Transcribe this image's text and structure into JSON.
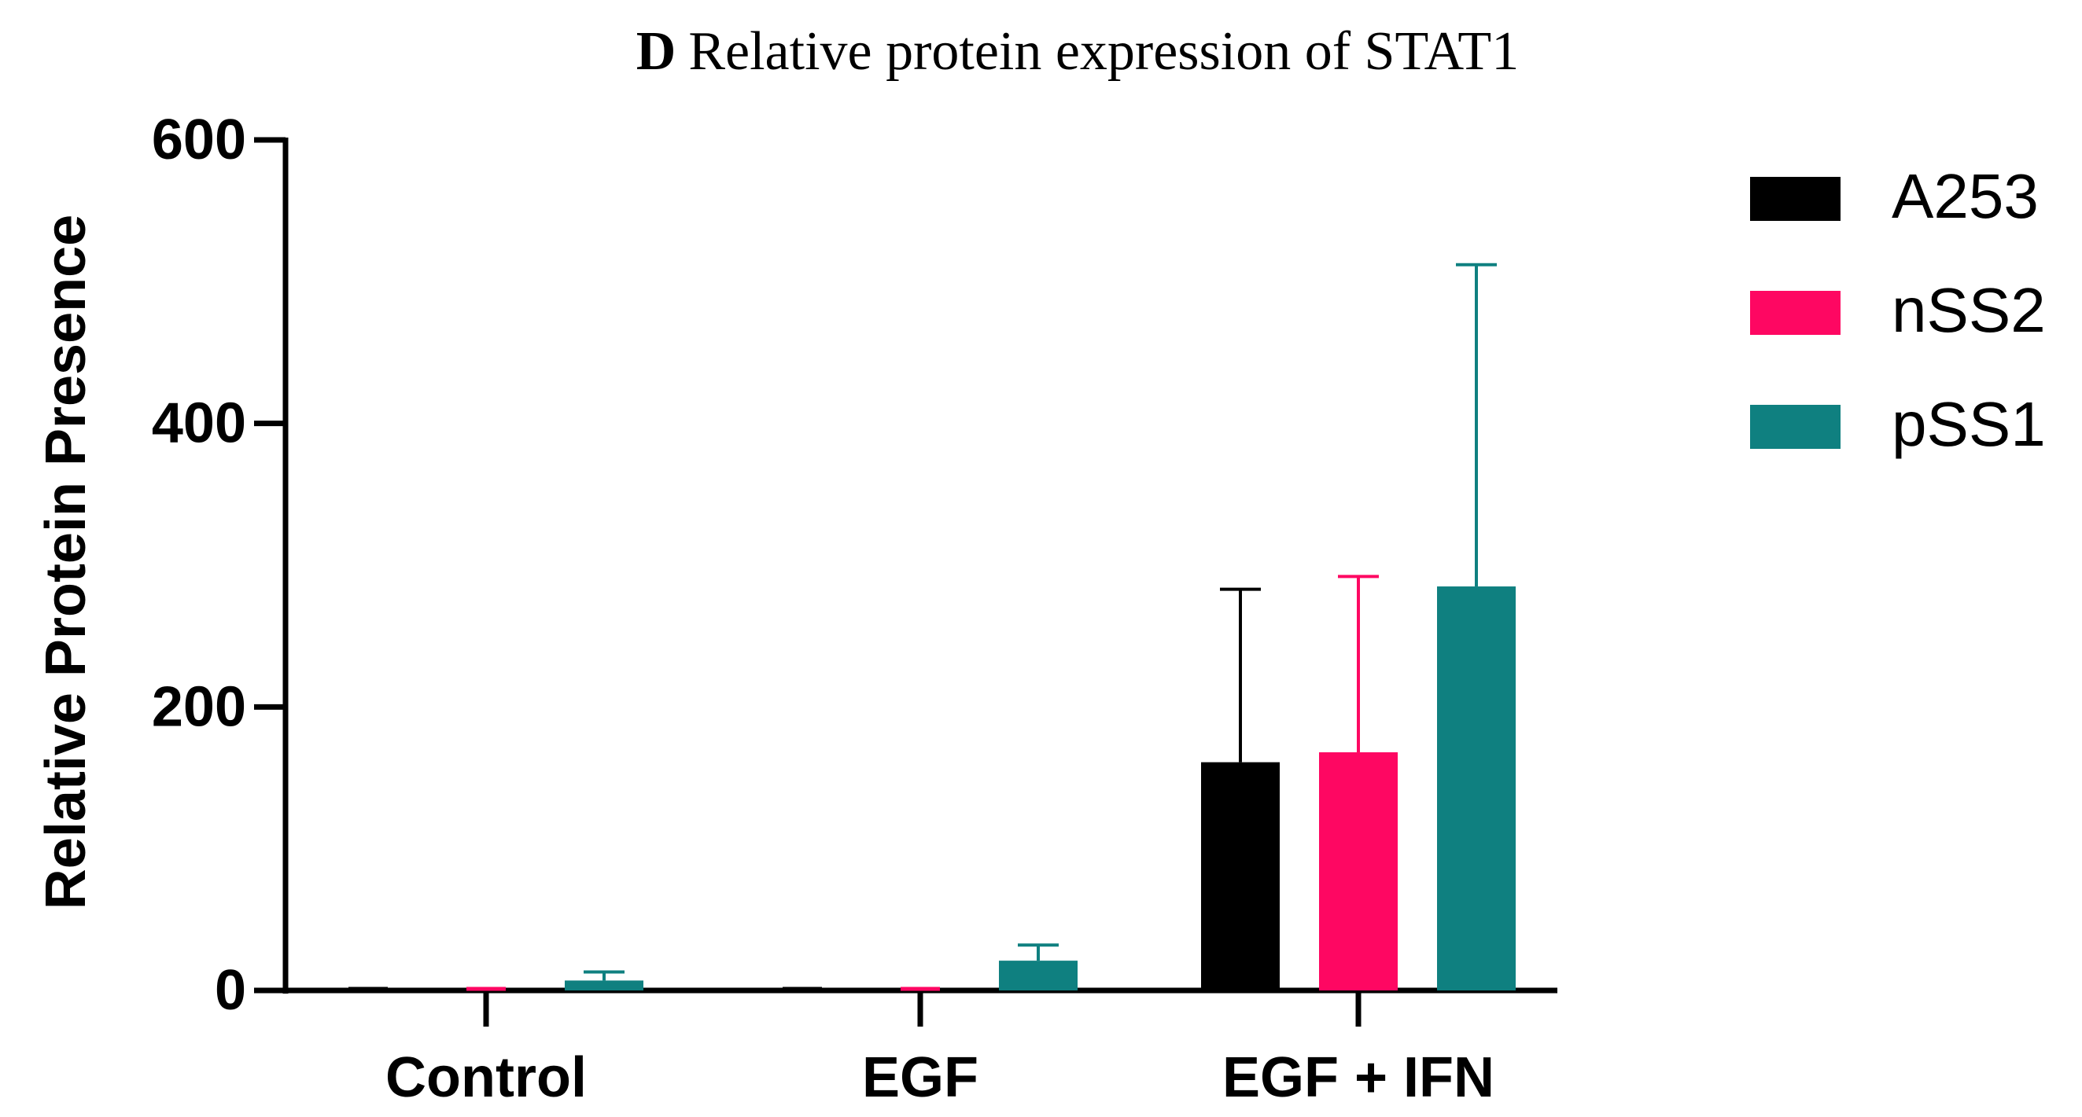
{
  "chart_data": {
    "type": "bar",
    "title_letter": "D",
    "title_text": "Relative protein expression of STAT1",
    "xlabel": "",
    "ylabel": "Relative Protein Presence",
    "ylim": [
      0,
      600
    ],
    "yticks": [
      "0",
      "200",
      "400",
      "600"
    ],
    "categories": [
      "Control",
      "EGF",
      "EGF + IFN"
    ],
    "series": [
      {
        "name": "A253",
        "color": "#000000",
        "values": [
          0,
          0,
          161
        ],
        "errors": [
          0,
          0,
          122
        ]
      },
      {
        "name": "nSS2",
        "color": "#fe0762",
        "values": [
          0,
          0,
          168
        ],
        "errors": [
          0,
          0,
          124
        ]
      },
      {
        "name": "pSS1",
        "color": "#0f8080",
        "values": [
          7,
          21,
          285
        ],
        "errors": [
          6,
          11,
          227
        ]
      }
    ],
    "legend_position": "right"
  }
}
